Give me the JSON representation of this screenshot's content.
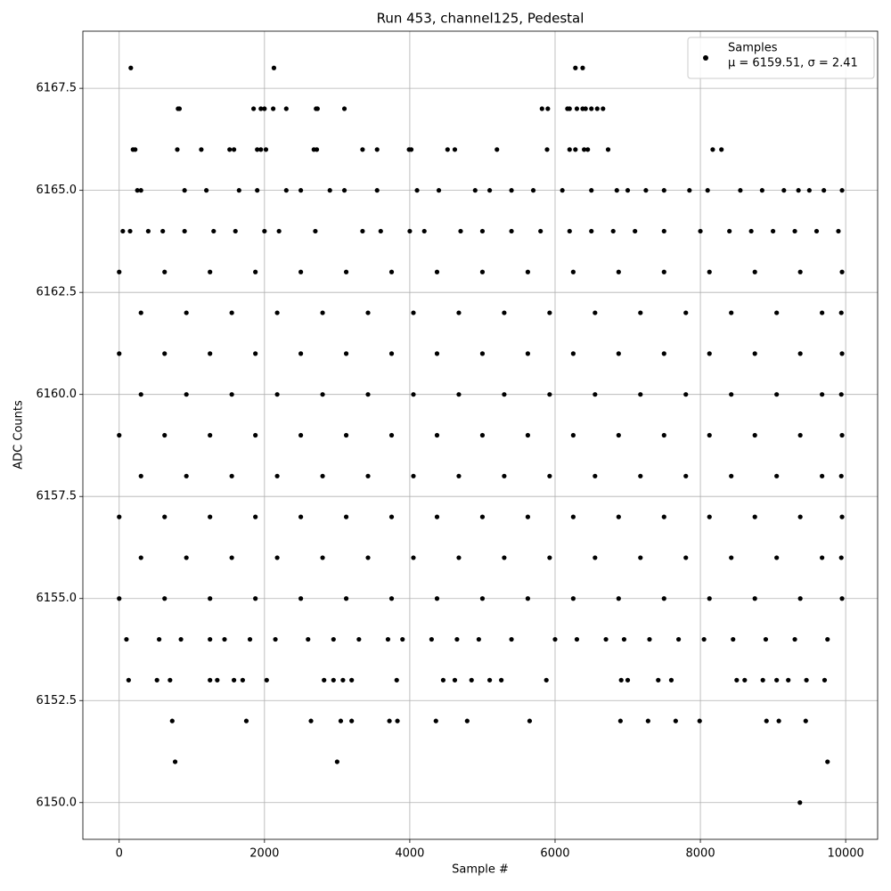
{
  "chart_data": {
    "type": "scatter",
    "title": "Run 453, channel125, Pedestal",
    "x_label": "Sample #",
    "y_label": "ADC Counts",
    "xlim": [
      -500,
      10440
    ],
    "ylim": [
      6149.1,
      6168.9
    ],
    "xticks": [
      0,
      2000,
      4000,
      6000,
      8000,
      10000
    ],
    "yticks": [
      {
        "value": 6150,
        "label": "6150.0"
      },
      {
        "value": 6152.5,
        "label": "6152.5"
      },
      {
        "value": 6155,
        "label": "6155.0"
      },
      {
        "value": 6157.5,
        "label": "6157.5"
      },
      {
        "value": 6160,
        "label": "6160.0"
      },
      {
        "value": 6162.5,
        "label": "6162.5"
      },
      {
        "value": 6165,
        "label": "6165.0"
      },
      {
        "value": 6167.5,
        "label": "6167.5"
      }
    ],
    "grid": true,
    "legend": "upper right",
    "series": [
      {
        "name": "Samples",
        "stats_label": "μ = 6159.51, σ = 2.41",
        "color": "#000000",
        "x": [
          160,
          2130,
          6280,
          6380,
          810,
          830,
          1850,
          1950,
          2000,
          2120,
          2300,
          2710,
          2730,
          3100,
          5820,
          5900,
          6170,
          6200,
          6300,
          6380,
          6420,
          6500,
          6580,
          6660,
          190,
          220,
          800,
          1130,
          1520,
          1580,
          1900,
          1950,
          2020,
          2680,
          2720,
          3350,
          3550,
          3990,
          4020,
          4520,
          4620,
          5200,
          5890,
          6200,
          6280,
          6400,
          6450,
          6730,
          8170,
          8290,
          250,
          300,
          900,
          1200,
          1650,
          1900,
          2300,
          2500,
          2900,
          3100,
          3550,
          4100,
          4400,
          4900,
          5100,
          5400,
          5700,
          6100,
          6500,
          6850,
          7000,
          7250,
          7500,
          7850,
          8100,
          8550,
          8850,
          9150,
          9350,
          9500,
          9700,
          9950,
          50,
          150,
          400,
          600,
          900,
          1300,
          1600,
          2000,
          2200,
          2700,
          3350,
          3600,
          4000,
          4200,
          4700,
          5000,
          5400,
          5800,
          6200,
          6500,
          6800,
          7100,
          7500,
          8000,
          8400,
          8700,
          9000,
          9300,
          9600,
          9900,
          0,
          625,
          1250,
          1875,
          2500,
          3125,
          3750,
          4375,
          5000,
          5625,
          6250,
          6875,
          7500,
          8125,
          8750,
          9375,
          9950,
          300,
          925,
          1550,
          2175,
          2800,
          3425,
          4050,
          4675,
          5300,
          5925,
          6550,
          7175,
          7800,
          8425,
          9050,
          9675,
          9940,
          0,
          625,
          1250,
          1875,
          2500,
          3125,
          3750,
          4375,
          5000,
          5625,
          6250,
          6875,
          7500,
          8125,
          8750,
          9375,
          9950,
          300,
          925,
          1550,
          2175,
          2800,
          3425,
          4050,
          4675,
          5300,
          5925,
          6550,
          7175,
          7800,
          8425,
          9050,
          9675,
          9940,
          0,
          625,
          1250,
          1875,
          2500,
          3125,
          3750,
          4375,
          5000,
          5625,
          6250,
          6875,
          7500,
          8125,
          8750,
          9375,
          9950,
          300,
          925,
          1550,
          2175,
          2800,
          3425,
          4050,
          4675,
          5300,
          5925,
          6550,
          7175,
          7800,
          8425,
          9050,
          9675,
          9940,
          0,
          625,
          1250,
          1875,
          2500,
          3125,
          3750,
          4375,
          5000,
          5625,
          6250,
          6875,
          7500,
          8125,
          8750,
          9375,
          9950,
          300,
          925,
          1550,
          2175,
          2800,
          3425,
          4050,
          4675,
          5300,
          5925,
          6550,
          7175,
          7800,
          8425,
          9050,
          9675,
          9940,
          0,
          625,
          1250,
          1875,
          2500,
          3125,
          3750,
          4375,
          5000,
          5625,
          6250,
          6875,
          7500,
          8125,
          8750,
          9375,
          9950,
          100,
          550,
          850,
          1250,
          1450,
          1800,
          2150,
          2600,
          2950,
          3300,
          3700,
          3900,
          4300,
          4650,
          4950,
          5400,
          6000,
          6300,
          6700,
          6950,
          7300,
          7700,
          8050,
          8450,
          8900,
          9300,
          9750,
          130,
          520,
          700,
          1250,
          1350,
          1580,
          1700,
          2030,
          2820,
          2950,
          3080,
          3200,
          3820,
          4460,
          4620,
          4850,
          5100,
          5260,
          5880,
          6910,
          7000,
          7420,
          7600,
          8500,
          8610,
          8860,
          9050,
          9210,
          9460,
          9710,
          730,
          1750,
          2640,
          3050,
          3200,
          3720,
          3830,
          4360,
          4790,
          5650,
          6900,
          7280,
          7660,
          7990,
          8910,
          9080,
          9450,
          770,
          3000,
          9750,
          9370
        ],
        "values": [
          6168,
          6168,
          6168,
          6168,
          6167,
          6167,
          6167,
          6167,
          6167,
          6167,
          6167,
          6167,
          6167,
          6167,
          6167,
          6167,
          6167,
          6167,
          6167,
          6167,
          6167,
          6167,
          6167,
          6167,
          6166,
          6166,
          6166,
          6166,
          6166,
          6166,
          6166,
          6166,
          6166,
          6166,
          6166,
          6166,
          6166,
          6166,
          6166,
          6166,
          6166,
          6166,
          6166,
          6166,
          6166,
          6166,
          6166,
          6166,
          6166,
          6166,
          6165,
          6165,
          6165,
          6165,
          6165,
          6165,
          6165,
          6165,
          6165,
          6165,
          6165,
          6165,
          6165,
          6165,
          6165,
          6165,
          6165,
          6165,
          6165,
          6165,
          6165,
          6165,
          6165,
          6165,
          6165,
          6165,
          6165,
          6165,
          6165,
          6165,
          6165,
          6165,
          6164,
          6164,
          6164,
          6164,
          6164,
          6164,
          6164,
          6164,
          6164,
          6164,
          6164,
          6164,
          6164,
          6164,
          6164,
          6164,
          6164,
          6164,
          6164,
          6164,
          6164,
          6164,
          6164,
          6164,
          6164,
          6164,
          6164,
          6164,
          6164,
          6164,
          6163,
          6163,
          6163,
          6163,
          6163,
          6163,
          6163,
          6163,
          6163,
          6163,
          6163,
          6163,
          6163,
          6163,
          6163,
          6163,
          6163,
          6162,
          6162,
          6162,
          6162,
          6162,
          6162,
          6162,
          6162,
          6162,
          6162,
          6162,
          6162,
          6162,
          6162,
          6162,
          6162,
          6162,
          6161,
          6161,
          6161,
          6161,
          6161,
          6161,
          6161,
          6161,
          6161,
          6161,
          6161,
          6161,
          6161,
          6161,
          6161,
          6161,
          6161,
          6160,
          6160,
          6160,
          6160,
          6160,
          6160,
          6160,
          6160,
          6160,
          6160,
          6160,
          6160,
          6160,
          6160,
          6160,
          6160,
          6160,
          6159,
          6159,
          6159,
          6159,
          6159,
          6159,
          6159,
          6159,
          6159,
          6159,
          6159,
          6159,
          6159,
          6159,
          6159,
          6159,
          6159,
          6158,
          6158,
          6158,
          6158,
          6158,
          6158,
          6158,
          6158,
          6158,
          6158,
          6158,
          6158,
          6158,
          6158,
          6158,
          6158,
          6158,
          6157,
          6157,
          6157,
          6157,
          6157,
          6157,
          6157,
          6157,
          6157,
          6157,
          6157,
          6157,
          6157,
          6157,
          6157,
          6157,
          6157,
          6156,
          6156,
          6156,
          6156,
          6156,
          6156,
          6156,
          6156,
          6156,
          6156,
          6156,
          6156,
          6156,
          6156,
          6156,
          6156,
          6156,
          6155,
          6155,
          6155,
          6155,
          6155,
          6155,
          6155,
          6155,
          6155,
          6155,
          6155,
          6155,
          6155,
          6155,
          6155,
          6155,
          6155,
          6154,
          6154,
          6154,
          6154,
          6154,
          6154,
          6154,
          6154,
          6154,
          6154,
          6154,
          6154,
          6154,
          6154,
          6154,
          6154,
          6154,
          6154,
          6154,
          6154,
          6154,
          6154,
          6154,
          6154,
          6154,
          6154,
          6154,
          6153,
          6153,
          6153,
          6153,
          6153,
          6153,
          6153,
          6153,
          6153,
          6153,
          6153,
          6153,
          6153,
          6153,
          6153,
          6153,
          6153,
          6153,
          6153,
          6153,
          6153,
          6153,
          6153,
          6153,
          6153,
          6153,
          6153,
          6153,
          6153,
          6153,
          6152,
          6152,
          6152,
          6152,
          6152,
          6152,
          6152,
          6152,
          6152,
          6152,
          6152,
          6152,
          6152,
          6152,
          6152,
          6152,
          6152,
          6151,
          6151,
          6151,
          6150
        ]
      }
    ]
  }
}
